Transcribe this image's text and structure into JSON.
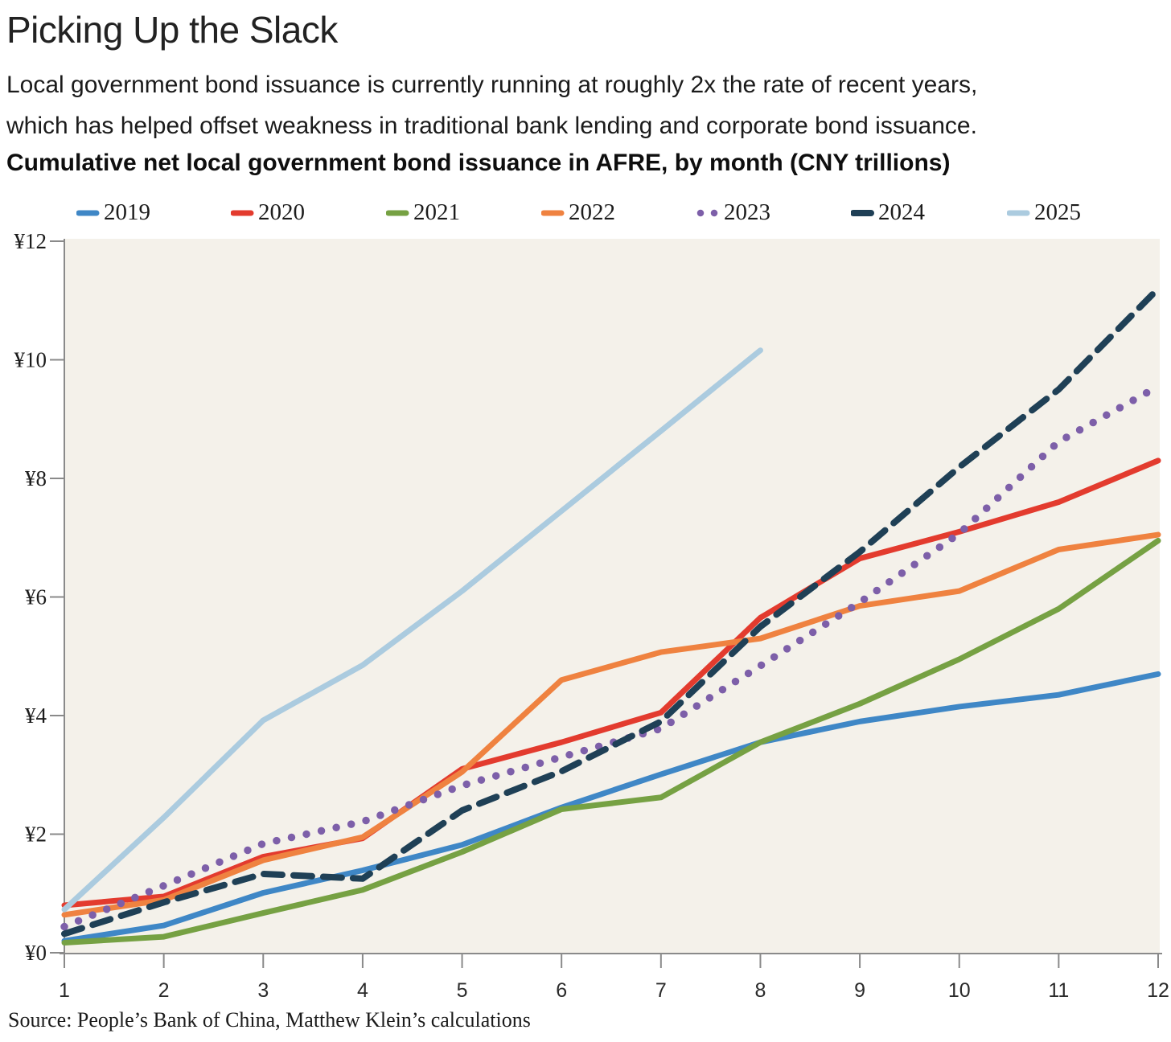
{
  "header": {
    "title": "Picking Up the Slack",
    "subtitle": [
      "Local government bond issuance is currently running at roughly 2x the rate of recent years,",
      "which has helped offset weakness in traditional bank lending and corporate bond issuance."
    ],
    "chart_heading": "Cumulative net local government bond issuance in AFRE, by month (CNY trillions)"
  },
  "source": "Source: People’s Bank of China, Matthew Klein’s calculations",
  "colors": {
    "plot_background": "#f4f1ea",
    "axis": "#8a8a8a",
    "text": "#1b1b1b"
  },
  "chart_data": {
    "type": "line",
    "title": "Cumulative net local government bond issuance in AFRE, by month (CNY trillions)",
    "xlabel": "",
    "ylabel": "",
    "x": [
      1,
      2,
      3,
      4,
      5,
      6,
      7,
      8,
      9,
      10,
      11,
      12
    ],
    "ylim": [
      0,
      12
    ],
    "y_ticks": [
      0,
      2,
      4,
      6,
      8,
      10,
      12
    ],
    "y_tick_prefix": "¥",
    "grid": false,
    "legend_position": "top",
    "series": [
      {
        "name": "2019",
        "color": "#3f87c6",
        "style": "solid",
        "values": [
          0.2,
          0.46,
          1.01,
          1.39,
          1.82,
          2.45,
          3.01,
          3.55,
          3.9,
          4.15,
          4.35,
          4.7
        ]
      },
      {
        "name": "2020",
        "color": "#e33b2e",
        "style": "solid",
        "values": [
          0.8,
          0.95,
          1.62,
          1.93,
          3.1,
          3.55,
          4.05,
          5.65,
          6.65,
          7.1,
          7.6,
          8.3
        ]
      },
      {
        "name": "2021",
        "color": "#76a143",
        "style": "solid",
        "values": [
          0.17,
          0.27,
          0.67,
          1.06,
          1.7,
          2.42,
          2.62,
          3.55,
          4.2,
          4.95,
          5.8,
          6.95
        ]
      },
      {
        "name": "2022",
        "color": "#ef8240",
        "style": "solid",
        "values": [
          0.64,
          0.89,
          1.56,
          1.95,
          3.05,
          4.6,
          5.07,
          5.3,
          5.85,
          6.1,
          6.8,
          7.05
        ]
      },
      {
        "name": "2023",
        "color": "#7d5fa9",
        "style": "dotted",
        "values": [
          0.44,
          1.13,
          1.84,
          2.21,
          2.82,
          3.3,
          3.78,
          4.84,
          5.91,
          7.07,
          8.62,
          9.55
        ]
      },
      {
        "name": "2024",
        "color": "#1f4056",
        "style": "dashed",
        "values": [
          0.32,
          0.85,
          1.33,
          1.25,
          2.4,
          3.06,
          3.9,
          5.5,
          6.76,
          8.19,
          9.5,
          11.2
        ]
      },
      {
        "name": "2025",
        "color": "#abcbdf",
        "style": "solid",
        "values": [
          0.73,
          2.28,
          3.92,
          4.85,
          6.1,
          7.45,
          8.8,
          10.16
        ]
      }
    ]
  }
}
